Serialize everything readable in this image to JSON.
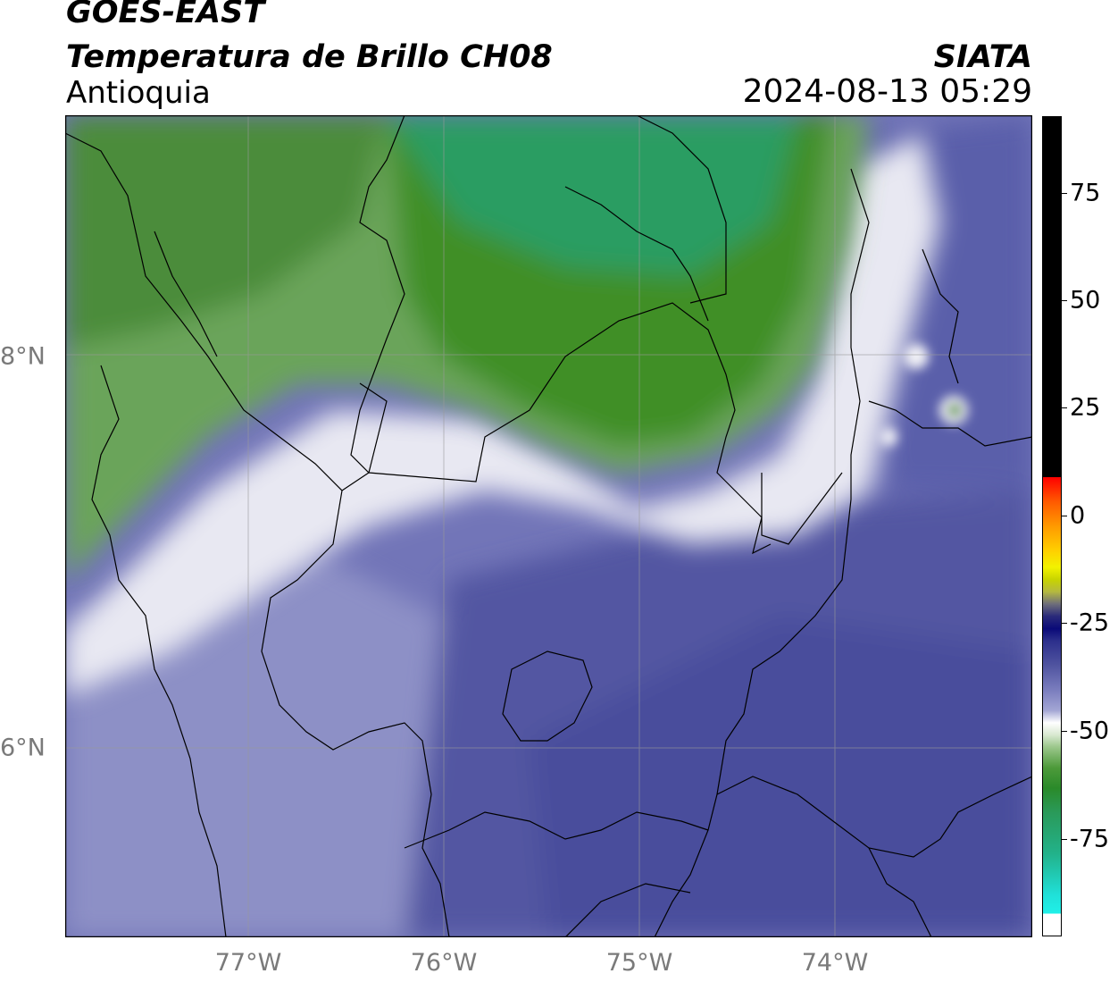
{
  "header": {
    "satellite": "GOES-EAST",
    "product": "Temperatura de Brillo CH08",
    "region": "Antioquia",
    "agency": "SIATA",
    "datetime": "2024-08-13 05:29"
  },
  "axes": {
    "lon_ticks": [
      "77°W",
      "76°W",
      "75°W",
      "74°W"
    ],
    "lat_ticks": [
      "8°N",
      "6°N"
    ]
  },
  "colorbar": {
    "ticks": [
      "75",
      "50",
      "25",
      "0",
      "-25",
      "-50",
      "-75"
    ],
    "range": [
      -95,
      95
    ]
  },
  "colors": {
    "green_dark": "#3e8e24",
    "teal": "#22a66e",
    "white": "#f4f4f8",
    "lavender": "#a8acd6",
    "blue": "#5b5fa8",
    "blue_dark": "#3e4296"
  }
}
